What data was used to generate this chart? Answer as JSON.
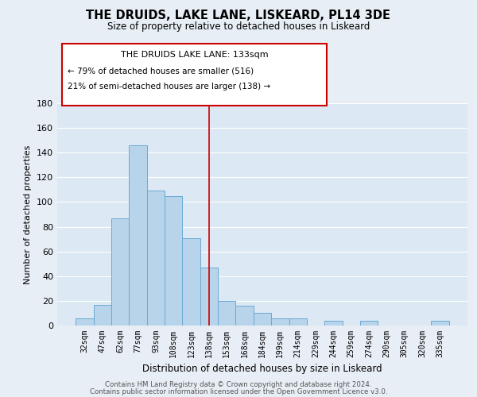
{
  "title": "THE DRUIDS, LAKE LANE, LISKEARD, PL14 3DE",
  "subtitle": "Size of property relative to detached houses in Liskeard",
  "xlabel": "Distribution of detached houses by size in Liskeard",
  "ylabel": "Number of detached properties",
  "bar_labels": [
    "32sqm",
    "47sqm",
    "62sqm",
    "77sqm",
    "93sqm",
    "108sqm",
    "123sqm",
    "138sqm",
    "153sqm",
    "168sqm",
    "184sqm",
    "199sqm",
    "214sqm",
    "229sqm",
    "244sqm",
    "259sqm",
    "274sqm",
    "290sqm",
    "305sqm",
    "320sqm",
    "335sqm"
  ],
  "bar_values": [
    6,
    17,
    87,
    146,
    109,
    105,
    71,
    47,
    20,
    16,
    10,
    6,
    6,
    0,
    4,
    0,
    4,
    0,
    0,
    0,
    4
  ],
  "bar_color": "#b8d4ea",
  "bar_edge_color": "#6aaad4",
  "ylim": [
    0,
    180
  ],
  "yticks": [
    0,
    20,
    40,
    60,
    80,
    100,
    120,
    140,
    160,
    180
  ],
  "vline_x": 7,
  "vline_color": "#cc0000",
  "annotation_title": "THE DRUIDS LAKE LANE: 133sqm",
  "annotation_line1": "← 79% of detached houses are smaller (516)",
  "annotation_line2": "21% of semi-detached houses are larger (138) →",
  "annotation_box_color": "#ffffff",
  "annotation_box_edge": "#cc0000",
  "footer_line1": "Contains HM Land Registry data © Crown copyright and database right 2024.",
  "footer_line2": "Contains public sector information licensed under the Open Government Licence v3.0.",
  "background_color": "#e8eef5",
  "plot_bg_color": "#dce8f4",
  "grid_color": "#ffffff"
}
